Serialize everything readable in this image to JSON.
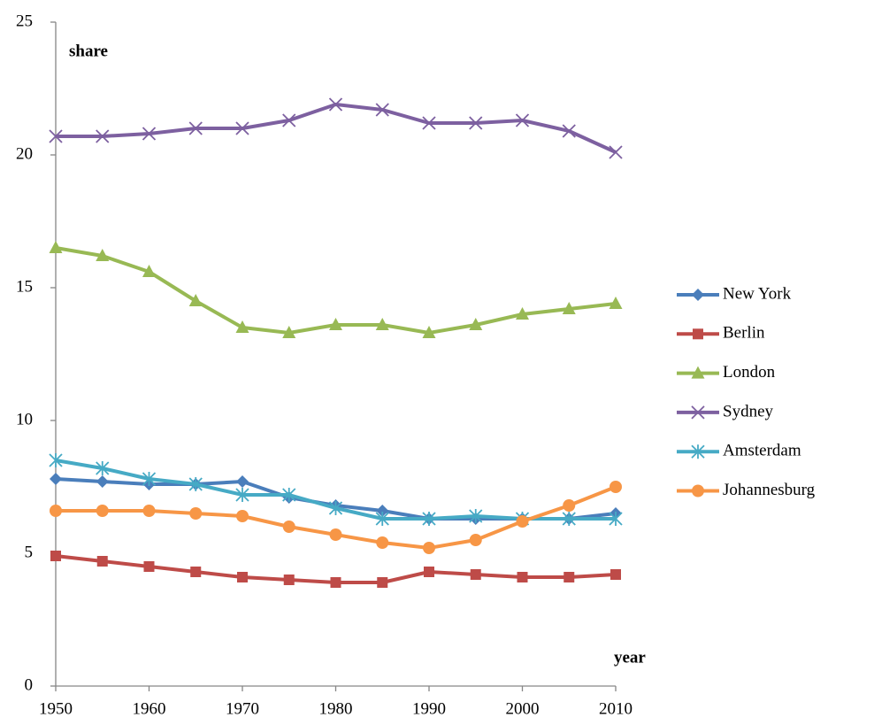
{
  "chart_data": {
    "type": "line",
    "y_label": "share",
    "x_label": "year",
    "x": [
      1950,
      1955,
      1960,
      1965,
      1970,
      1975,
      1980,
      1985,
      1990,
      1995,
      2000,
      2005,
      2010
    ],
    "xlim": [
      1950,
      2010
    ],
    "xticks": [
      1950,
      1960,
      1970,
      1980,
      1990,
      2000,
      2010
    ],
    "ylim": [
      0,
      25
    ],
    "yticks": [
      0,
      5,
      10,
      15,
      20,
      25
    ],
    "legend": "right",
    "series": [
      {
        "name": "New York",
        "color": "#4a7ebb",
        "marker": "diamond",
        "values": [
          7.8,
          7.7,
          7.6,
          7.6,
          7.7,
          7.1,
          6.8,
          6.6,
          6.3,
          6.3,
          6.3,
          6.3,
          6.5
        ]
      },
      {
        "name": "Berlin",
        "color": "#be4b48",
        "marker": "square",
        "values": [
          4.9,
          4.7,
          4.5,
          4.3,
          4.1,
          4.0,
          3.9,
          3.9,
          4.3,
          4.2,
          4.1,
          4.1,
          4.2
        ]
      },
      {
        "name": "London",
        "color": "#98b954",
        "marker": "triangle",
        "values": [
          16.5,
          16.2,
          15.6,
          14.5,
          13.5,
          13.3,
          13.6,
          13.6,
          13.3,
          13.6,
          14.0,
          14.2,
          14.4
        ]
      },
      {
        "name": "Sydney",
        "color": "#7d60a0",
        "marker": "x",
        "values": [
          20.7,
          20.7,
          20.8,
          21.0,
          21.0,
          21.3,
          21.9,
          21.7,
          21.2,
          21.2,
          21.3,
          20.9,
          20.1
        ]
      },
      {
        "name": "Amsterdam",
        "color": "#46aac5",
        "marker": "star",
        "values": [
          8.5,
          8.2,
          7.8,
          7.6,
          7.2,
          7.2,
          6.7,
          6.3,
          6.3,
          6.4,
          6.3,
          6.3,
          6.3
        ]
      },
      {
        "name": "Johannesburg",
        "color": "#f79646",
        "marker": "circle",
        "values": [
          6.6,
          6.6,
          6.6,
          6.5,
          6.4,
          6.0,
          5.7,
          5.4,
          5.2,
          5.5,
          6.2,
          6.8,
          7.5
        ]
      }
    ]
  }
}
